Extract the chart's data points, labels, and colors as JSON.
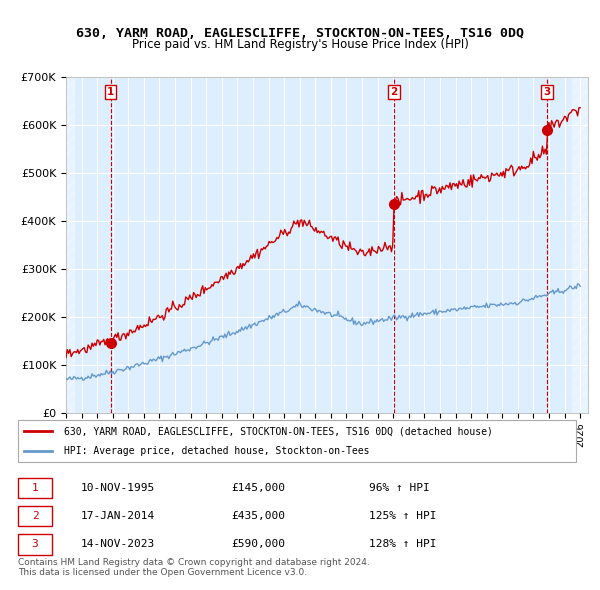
{
  "title_line1": "630, YARM ROAD, EAGLESCLIFFE, STOCKTON-ON-TEES, TS16 0DQ",
  "title_line2": "Price paid vs. HM Land Registry's House Price Index (HPI)",
  "legend_line1": "630, YARM ROAD, EAGLESCLIFFE, STOCKTON-ON-TEES, TS16 0DQ (detached house)",
  "legend_line2": "HPI: Average price, detached house, Stockton-on-Tees",
  "sale_color": "#cc0000",
  "hpi_color": "#6699cc",
  "background_color": "#ddeeff",
  "grid_color": "#ffffff",
  "ylim": [
    0,
    700000
  ],
  "yticks": [
    0,
    100000,
    200000,
    300000,
    400000,
    500000,
    600000,
    700000
  ],
  "ytick_labels": [
    "£0",
    "£100K",
    "£200K",
    "£300K",
    "£400K",
    "£500K",
    "£600K",
    "£700K"
  ],
  "xmin": 1993.0,
  "xmax": 2026.5,
  "sale_points": [
    {
      "year": 1995.86,
      "price": 145000,
      "label": "1"
    },
    {
      "year": 2014.04,
      "price": 435000,
      "label": "2"
    },
    {
      "year": 2023.87,
      "price": 590000,
      "label": "3"
    }
  ],
  "vline_years": [
    1995.86,
    2014.04,
    2023.87
  ],
  "table_rows": [
    {
      "num": "1",
      "date": "10-NOV-1995",
      "price": "£145,000",
      "hpi": "96% ↑ HPI"
    },
    {
      "num": "2",
      "date": "17-JAN-2014",
      "price": "£435,000",
      "hpi": "125% ↑ HPI"
    },
    {
      "num": "3",
      "date": "14-NOV-2023",
      "price": "£590,000",
      "hpi": "128% ↑ HPI"
    }
  ],
  "footnote": "Contains HM Land Registry data © Crown copyright and database right 2024.\nThis data is licensed under the Open Government Licence v3.0."
}
